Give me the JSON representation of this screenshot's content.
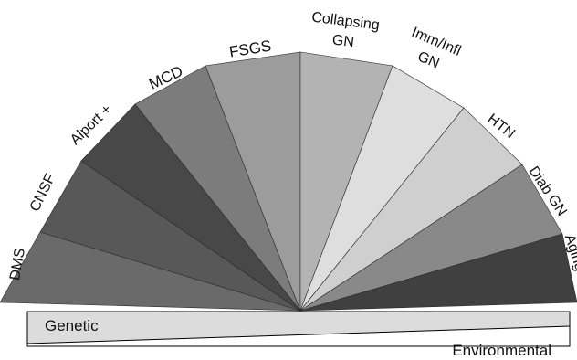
{
  "segments": [
    {
      "id": "dms",
      "lines": [
        "DMS"
      ],
      "color": "#6a6a6a"
    },
    {
      "id": "cnsf",
      "lines": [
        "CNSF"
      ],
      "color": "#585858"
    },
    {
      "id": "alport",
      "lines": [
        "Alport +"
      ],
      "color": "#484848"
    },
    {
      "id": "mcd",
      "lines": [
        "MCD"
      ],
      "color": "#7c7c7c"
    },
    {
      "id": "fsgs",
      "lines": [
        "FSGS"
      ],
      "color": "#9c9c9c"
    },
    {
      "id": "collapsing",
      "lines": [
        "Collapsing",
        "GN"
      ],
      "color": "#b3b3b3"
    },
    {
      "id": "imm",
      "lines": [
        "Imm/Infl",
        "GN"
      ],
      "color": "#dedede"
    },
    {
      "id": "htn",
      "lines": [
        "HTN"
      ],
      "color": "#cfcfcf"
    },
    {
      "id": "diab",
      "lines": [
        "Diab GN"
      ],
      "color": "#898989"
    },
    {
      "id": "aging",
      "lines": [
        "Aging"
      ],
      "color": "#404040"
    }
  ],
  "gradient_bar": {
    "top_label": "Genetic",
    "bottom_label": "Environmental"
  }
}
